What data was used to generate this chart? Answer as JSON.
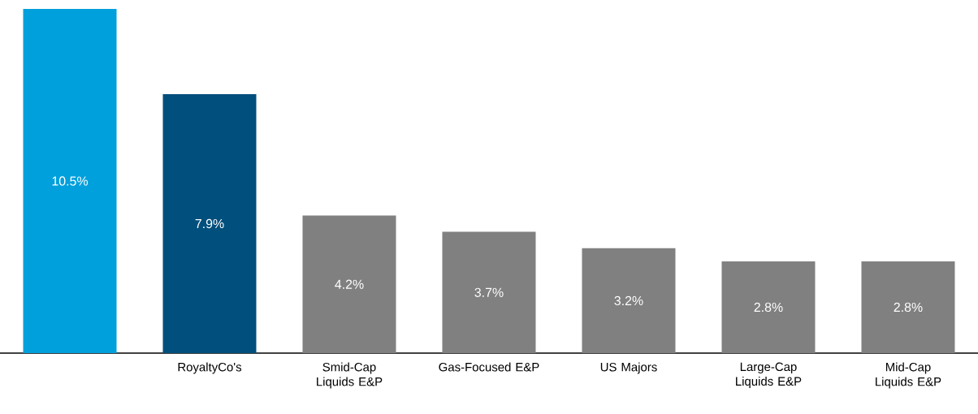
{
  "chart_data": {
    "type": "bar",
    "categories": [
      null,
      "RoyaltyCo's",
      "Smid-Cap Liquids E&P",
      "Gas-Focused E&P",
      "US Majors",
      "Large-Cap Liquids E&P",
      "Mid-Cap Liquids E&P"
    ],
    "values": [
      10.5,
      7.9,
      4.2,
      3.7,
      3.2,
      2.8,
      2.8
    ],
    "value_labels": [
      "10.5%",
      "7.9%",
      "4.2%",
      "3.7%",
      "3.2%",
      "2.8%",
      "2.8%"
    ],
    "colors": [
      "#00a0dc",
      "#004f7c",
      "#808080",
      "#808080",
      "#808080",
      "#808080",
      "#808080"
    ]
  }
}
